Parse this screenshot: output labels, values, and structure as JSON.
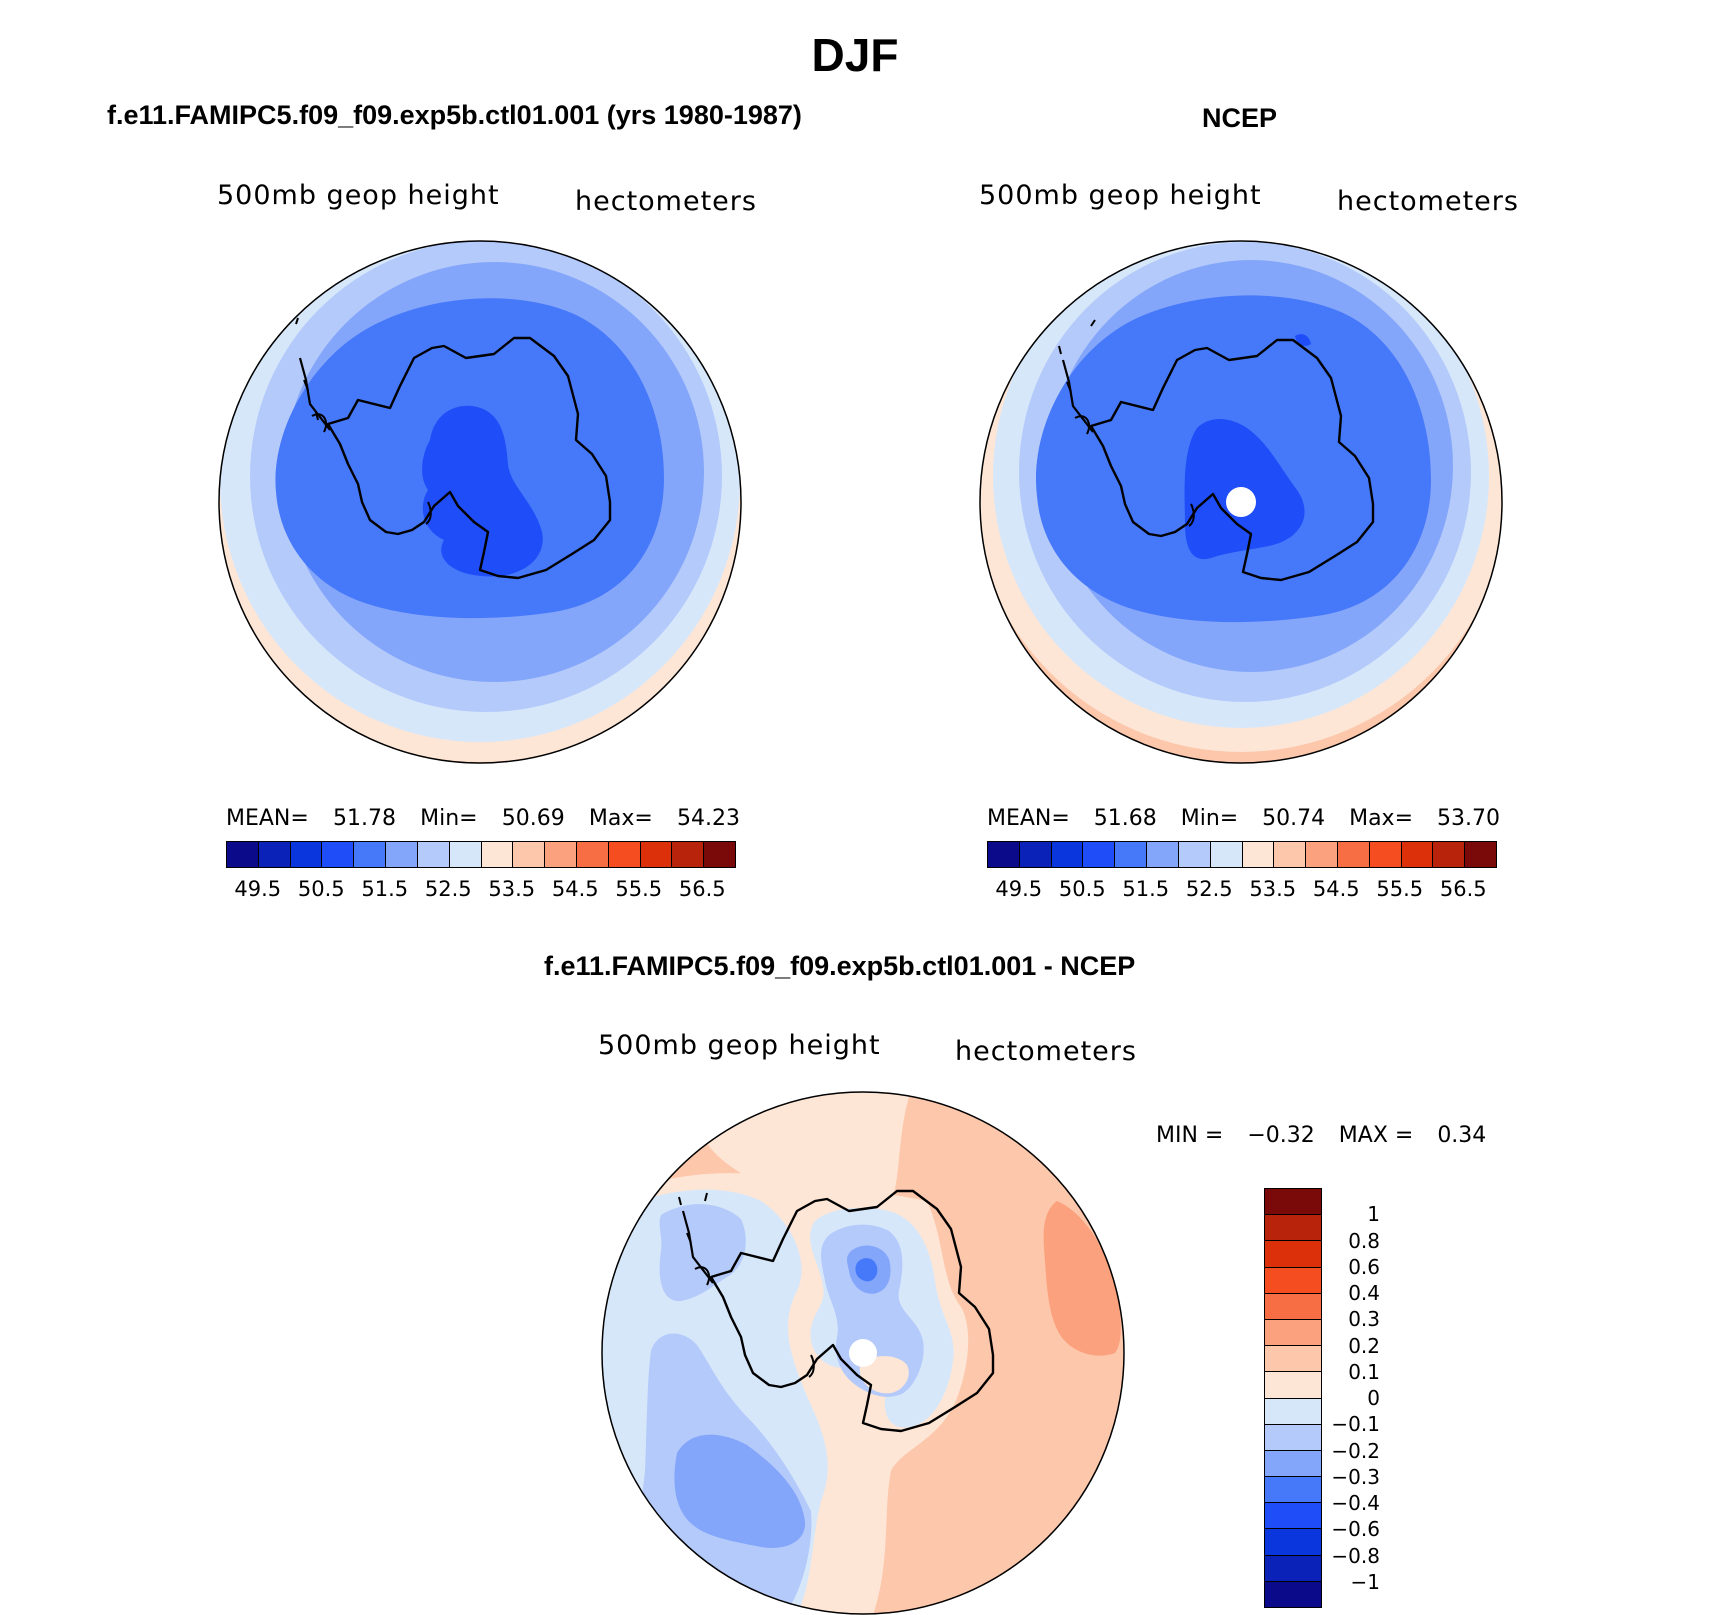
{
  "title": "DJF",
  "panels": [
    {
      "title": "f.e11.FAMIPC5.f09_f09.exp5b.ctl01.001 (yrs 1980-1987)",
      "subtitle_left": "500mb geop height",
      "subtitle_right": "hectometers",
      "stats": {
        "mean_label": "MEAN=",
        "mean": "51.78",
        "min_label": "Min=",
        "min": "50.69",
        "max_label": "Max=",
        "max": "54.23"
      }
    },
    {
      "title": "NCEP",
      "subtitle_left": "500mb geop height",
      "subtitle_right": "hectometers",
      "stats": {
        "mean_label": "MEAN=",
        "mean": "51.68",
        "min_label": "Min=",
        "min": "50.74",
        "max_label": "Max=",
        "max": "53.70"
      }
    },
    {
      "title": "f.e11.FAMIPC5.f09_f09.exp5b.ctl01.001 - NCEP",
      "subtitle_left": "500mb geop height",
      "subtitle_right": "hectometers",
      "stats": {
        "min_label": "MIN =",
        "min": "−0.32",
        "max_label": "MAX =",
        "max": "0.34"
      }
    }
  ],
  "colorbar_abs": {
    "colors": [
      "#0a0a8a",
      "#0b22b8",
      "#0a36de",
      "#1f4df8",
      "#4678fa",
      "#84a6fa",
      "#b4cafb",
      "#d7e7fa",
      "#fde6d6",
      "#fcc7ab",
      "#fba17d",
      "#f86e44",
      "#f54d1f",
      "#dc300a",
      "#b7240b",
      "#7a0a0a"
    ],
    "labels": [
      "49.5",
      "50.5",
      "51.5",
      "52.5",
      "53.5",
      "54.5",
      "55.5",
      "56.5"
    ]
  },
  "colorbar_diff": {
    "colors": [
      "#7a0a0a",
      "#b7240b",
      "#dc300a",
      "#f54d1f",
      "#f86e44",
      "#fba17d",
      "#fcc7ab",
      "#fde6d6",
      "#d7e7fa",
      "#b4cafb",
      "#84a6fa",
      "#4678fa",
      "#1f4df8",
      "#0a36de",
      "#0b22b8",
      "#0a0a8a"
    ],
    "labels": [
      "1",
      "0.8",
      "0.6",
      "0.4",
      "0.3",
      "0.2",
      "0.1",
      "0",
      "−0.1",
      "−0.2",
      "−0.3",
      "−0.4",
      "−0.6",
      "−0.8",
      "−1"
    ]
  }
}
